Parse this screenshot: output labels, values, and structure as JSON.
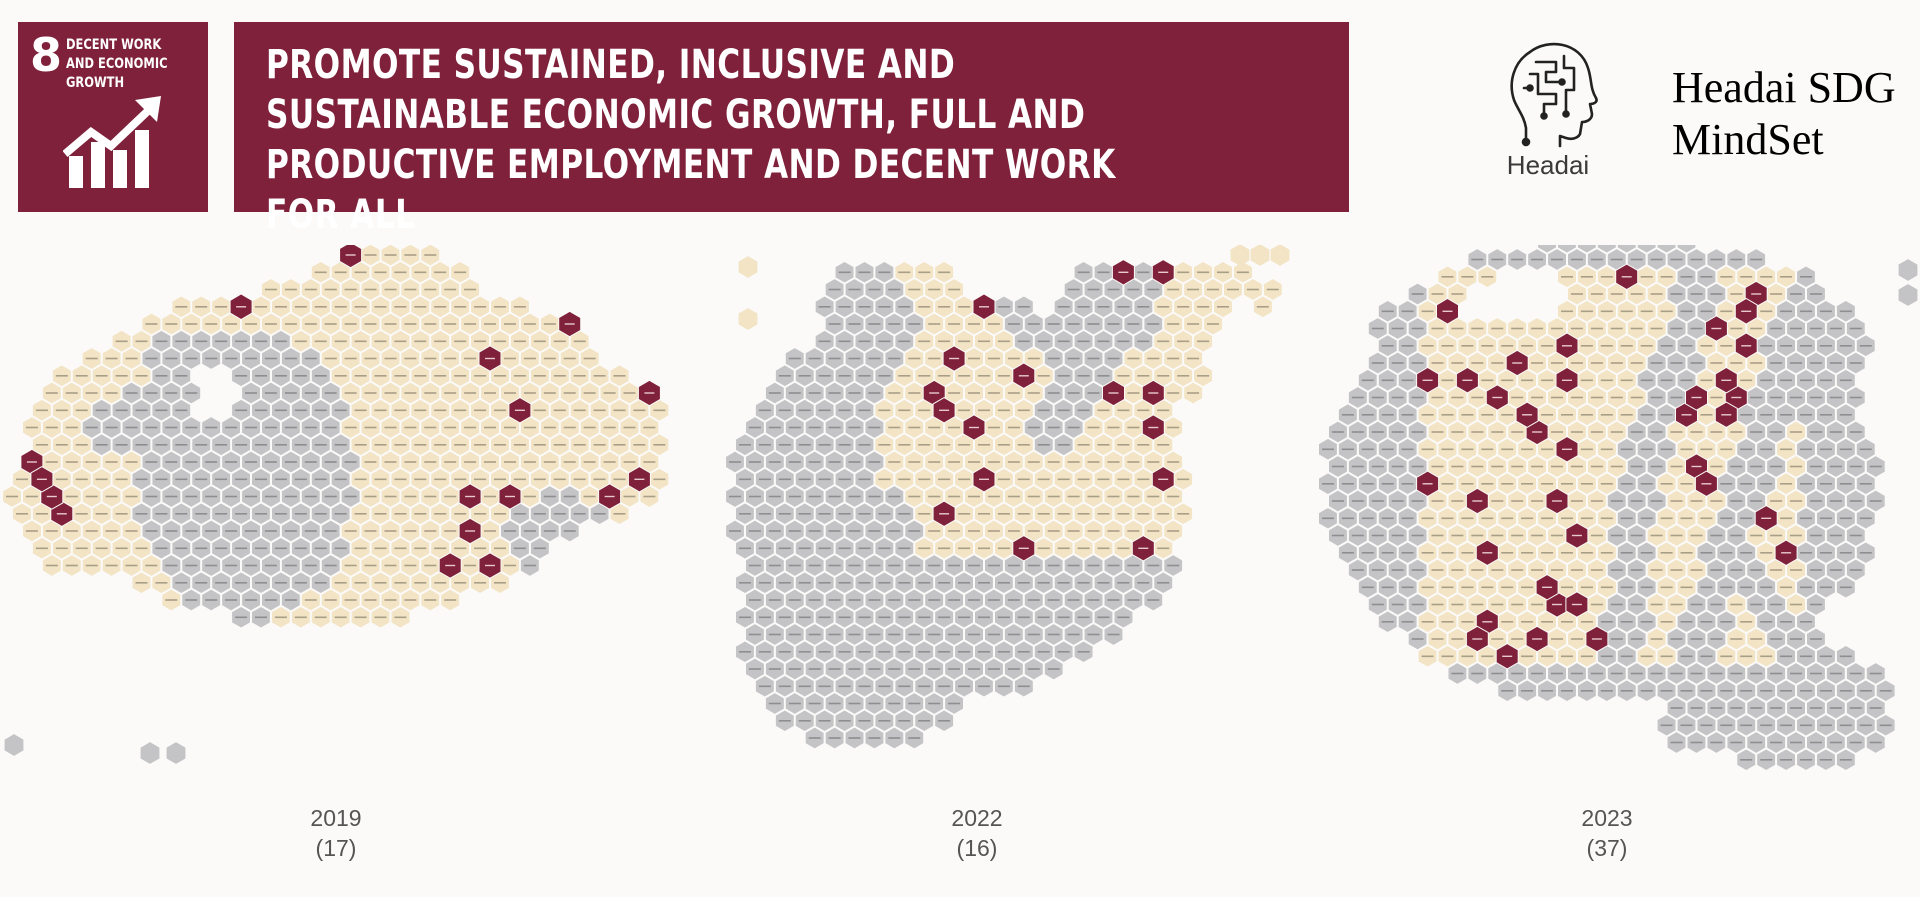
{
  "sdg_badge": {
    "number": "8",
    "label": "DECENT WORK AND ECONOMIC GROWTH",
    "icon": "growth-chart-icon"
  },
  "banner": {
    "title": "PROMOTE SUSTAINED, INCLUSIVE AND SUSTAINABLE ECONOMIC GROWTH, FULL AND PRODUCTIVE EMPLOYMENT AND DECENT WORK FOR ALL"
  },
  "logo": {
    "icon": "head-brain-circuit-icon",
    "text": "Headai"
  },
  "brand": {
    "line1": "Headai SDG",
    "line2": "MindSet"
  },
  "colors": {
    "burgundy": "#7f213a",
    "beige": "#f2e4c4",
    "grey": "#c4c4c6"
  },
  "maps": [
    {
      "year": "2019",
      "count": "(17)",
      "highlight_count": 17
    },
    {
      "year": "2022",
      "count": "(16)",
      "highlight_count": 16
    },
    {
      "year": "2023",
      "count": "(37)",
      "highlight_count": 37
    }
  ]
}
